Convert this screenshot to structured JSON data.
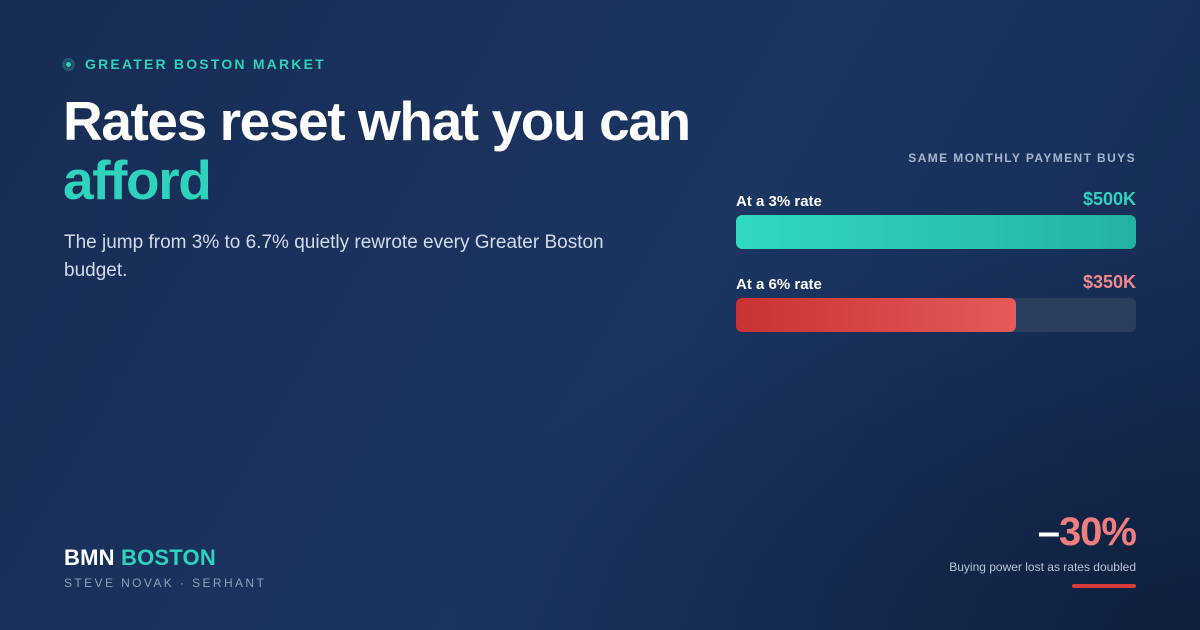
{
  "eyebrow": "GREATER BOSTON MARKET",
  "headline": {
    "line1": "Rates reset what you can",
    "line2": "afford"
  },
  "subtitle": "The jump from 3% to 6.7% quietly rewrote every Greater Boston budget.",
  "chart_data": {
    "type": "bar",
    "orientation": "horizontal",
    "title": "SAME MONTHLY PAYMENT BUYS",
    "categories": [
      "At a 3% rate",
      "At a 6% rate"
    ],
    "values": [
      500,
      350
    ],
    "value_labels": [
      "$500K",
      "$350K"
    ],
    "unit": "$K",
    "xlim": [
      0,
      500
    ],
    "grid": false,
    "colors": {
      "bar_3pct": "#2fd3bd",
      "bar_6pct": "#e05252",
      "value_3pct": "#2fd3bd",
      "value_6pct": "#f08a8a"
    }
  },
  "brand": {
    "part1": "BMN",
    "part2": "BOSTON",
    "agent": "STEVE NOVAK · SERHANT"
  },
  "stat": {
    "sign": "–",
    "value": "30%",
    "caption": "Buying power lost as rates doubled"
  }
}
